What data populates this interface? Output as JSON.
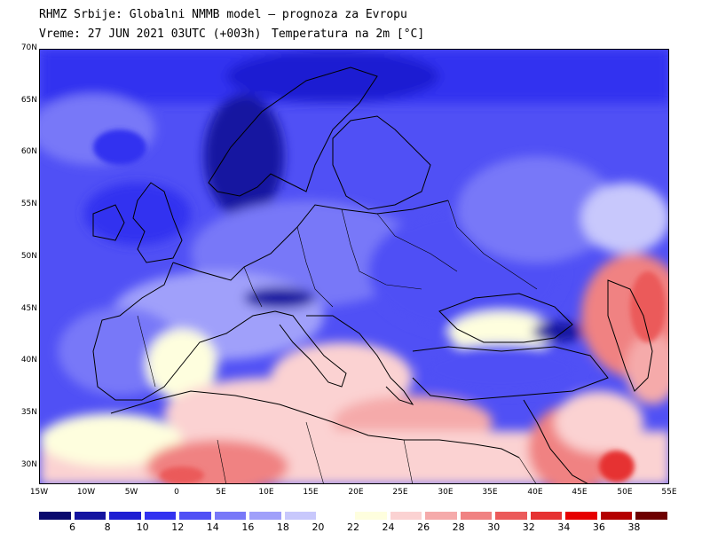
{
  "title": {
    "line1": "RHMZ Srbije: Globalni NMMB model — prognoza za Evropu",
    "line2_time": "Vreme: 27 JUN 2021 03UTC (+003h)",
    "line2_param": "Temperatura na 2m [°C]"
  },
  "map": {
    "lat_labels": [
      "70N",
      "65N",
      "60N",
      "55N",
      "50N",
      "45N",
      "40N",
      "35N",
      "30N"
    ],
    "lon_labels": [
      "15W",
      "10W",
      "5W",
      "0",
      "5E",
      "10E",
      "15E",
      "20E",
      "25E",
      "30E",
      "35E",
      "40E",
      "45E",
      "50E",
      "55E"
    ],
    "lon_range": [
      -15,
      55
    ],
    "lat_range": [
      28,
      70
    ]
  },
  "legend": {
    "labels": [
      "6",
      "8",
      "10",
      "12",
      "14",
      "16",
      "18",
      "20",
      "22",
      "24",
      "26",
      "28",
      "30",
      "32",
      "34",
      "36",
      "38"
    ],
    "colors": [
      "#0a0a6e",
      "#1414a0",
      "#1e1ed2",
      "#3232f0",
      "#5050f5",
      "#7878f8",
      "#a0a0fa",
      "#c8c8fc",
      "#ffffff",
      "#fefede",
      "#fbd2d2",
      "#f5aaaa",
      "#f08282",
      "#eb5a5a",
      "#e63232",
      "#e60000",
      "#b40000",
      "#6e0000"
    ]
  }
}
